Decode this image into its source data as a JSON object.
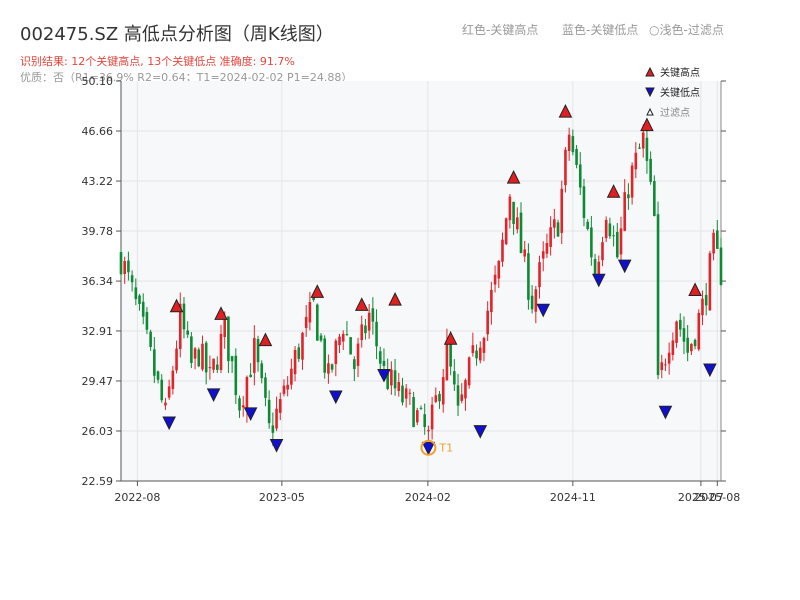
{
  "header": {
    "title": "002475.SZ 高低点分析图（周K线图）",
    "subtitle": "识别结果: 12个关键高点, 13个关键低点  准确度: 91.7%",
    "info": "优质：否（R1=36.9%  R2=0.64；T1=2024-02-02 P1=24.88）",
    "legend_top": [
      "红色-关键高点",
      "蓝色-关键低点",
      "浅色-过滤点"
    ]
  },
  "colors": {
    "up": "#e0242a",
    "down": "#0e8a34",
    "high_marker": "#e02020",
    "low_marker": "#1010d0",
    "t1": "#f0a030",
    "plot_bg": "#f7f8fa",
    "grid": "#e3e5e9"
  },
  "chart_data": {
    "type": "candlestick",
    "title": "002475.SZ 高低点分析图（周K线图）",
    "ylim": [
      22.59,
      50.1
    ],
    "yticks": [
      22.59,
      26.03,
      29.47,
      32.91,
      36.34,
      39.78,
      43.22,
      46.66,
      50.1
    ],
    "ytick_labels": [
      "22.59",
      "26.03",
      "29.47",
      "32.91",
      "36.34",
      "39.78",
      "43.22",
      "46.66",
      "50.10"
    ],
    "xlim": [
      "2022-07-01",
      "2025-08-08"
    ],
    "xticks": [
      "2022-08-01",
      "2023-05-01",
      "2024-02-01",
      "2024-11-01",
      "2025-07-01",
      "2025-08-01"
    ],
    "xtick_labels": [
      "2022-08",
      "2023-05",
      "2024-02",
      "2024-11",
      "2025-07",
      "2025-08"
    ],
    "grid": true,
    "legend": {
      "placement": "top-right",
      "entries": [
        {
          "label": "关键高点",
          "kind": "high"
        },
        {
          "label": "关键低点",
          "kind": "low"
        },
        {
          "label": "过滤点",
          "kind": "filtered"
        }
      ]
    },
    "anchors": [
      [
        "2022-07-01",
        38.0
      ],
      [
        "2022-07-22",
        35.5
      ],
      [
        "2022-08-19",
        32.0
      ],
      [
        "2022-09-09",
        29.0
      ],
      [
        "2022-09-23",
        27.0
      ],
      [
        "2022-10-21",
        33.8
      ],
      [
        "2022-11-11",
        30.5
      ],
      [
        "2022-11-25",
        31.5
      ],
      [
        "2022-12-16",
        29.5
      ],
      [
        "2023-01-13",
        33.0
      ],
      [
        "2023-02-10",
        28.0
      ],
      [
        "2023-03-10",
        31.5
      ],
      [
        "2023-04-07",
        26.0
      ],
      [
        "2023-05-05",
        28.5
      ],
      [
        "2023-05-26",
        31.0
      ],
      [
        "2023-06-30",
        34.5
      ],
      [
        "2023-07-28",
        29.5
      ],
      [
        "2023-08-25",
        33.5
      ],
      [
        "2023-09-15",
        30.5
      ],
      [
        "2023-10-13",
        34.0
      ],
      [
        "2023-11-10",
        30.0
      ],
      [
        "2023-12-08",
        28.5
      ],
      [
        "2024-01-05",
        27.5
      ],
      [
        "2024-02-02",
        25.5
      ],
      [
        "2024-02-16",
        28.0
      ],
      [
        "2024-03-08",
        31.5
      ],
      [
        "2024-03-29",
        27.0
      ],
      [
        "2024-04-19",
        30.0
      ],
      [
        "2024-05-17",
        33.5
      ],
      [
        "2024-06-14",
        37.0
      ],
      [
        "2024-07-05",
        42.5
      ],
      [
        "2024-07-26",
        38.5
      ],
      [
        "2024-08-16",
        35.0
      ],
      [
        "2024-09-13",
        38.5
      ],
      [
        "2024-10-04",
        40.5
      ],
      [
        "2024-10-25",
        46.5
      ],
      [
        "2024-11-15",
        42.5
      ],
      [
        "2024-12-13",
        37.0
      ],
      [
        "2025-01-03",
        41.5
      ],
      [
        "2025-01-24",
        38.0
      ],
      [
        "2025-02-14",
        43.0
      ],
      [
        "2025-03-14",
        46.0
      ],
      [
        "2025-04-04",
        40.5
      ],
      [
        "2025-04-11",
        29.0
      ],
      [
        "2025-05-02",
        32.5
      ],
      [
        "2025-05-16",
        34.0
      ],
      [
        "2025-06-06",
        31.5
      ],
      [
        "2025-07-04",
        34.5
      ],
      [
        "2025-07-25",
        38.5
      ],
      [
        "2025-08-08",
        37.0
      ]
    ],
    "key_highs": [
      {
        "date": "2022-10-14",
        "value": 34.09
      },
      {
        "date": "2023-01-06",
        "value": 33.57
      },
      {
        "date": "2023-03-31",
        "value": 31.76
      },
      {
        "date": "2023-07-07",
        "value": 35.08
      },
      {
        "date": "2023-09-29",
        "value": 34.19
      },
      {
        "date": "2023-12-01",
        "value": 34.55
      },
      {
        "date": "2024-03-15",
        "value": 31.86
      },
      {
        "date": "2024-07-12",
        "value": 42.94
      },
      {
        "date": "2024-10-18",
        "value": 47.48
      },
      {
        "date": "2025-01-17",
        "value": 41.97
      },
      {
        "date": "2025-03-21",
        "value": 46.55
      },
      {
        "date": "2025-06-20",
        "value": 35.21
      }
    ],
    "key_lows": [
      {
        "date": "2022-09-30",
        "value": 27.13
      },
      {
        "date": "2022-12-23",
        "value": 29.06
      },
      {
        "date": "2023-03-03",
        "value": 27.76
      },
      {
        "date": "2023-04-21",
        "value": 25.58
      },
      {
        "date": "2023-08-11",
        "value": 28.92
      },
      {
        "date": "2023-11-10",
        "value": 30.4
      },
      {
        "date": "2024-02-02",
        "value": 25.38
      },
      {
        "date": "2024-05-10",
        "value": 26.54
      },
      {
        "date": "2024-09-06",
        "value": 34.88
      },
      {
        "date": "2024-12-20",
        "value": 36.95
      },
      {
        "date": "2025-02-07",
        "value": 37.92
      },
      {
        "date": "2025-04-25",
        "value": 27.87
      },
      {
        "date": "2025-07-18",
        "value": 30.77
      }
    ],
    "annotations": [
      {
        "label": "T1",
        "date": "2024-02-02",
        "value": 24.88
      }
    ]
  }
}
